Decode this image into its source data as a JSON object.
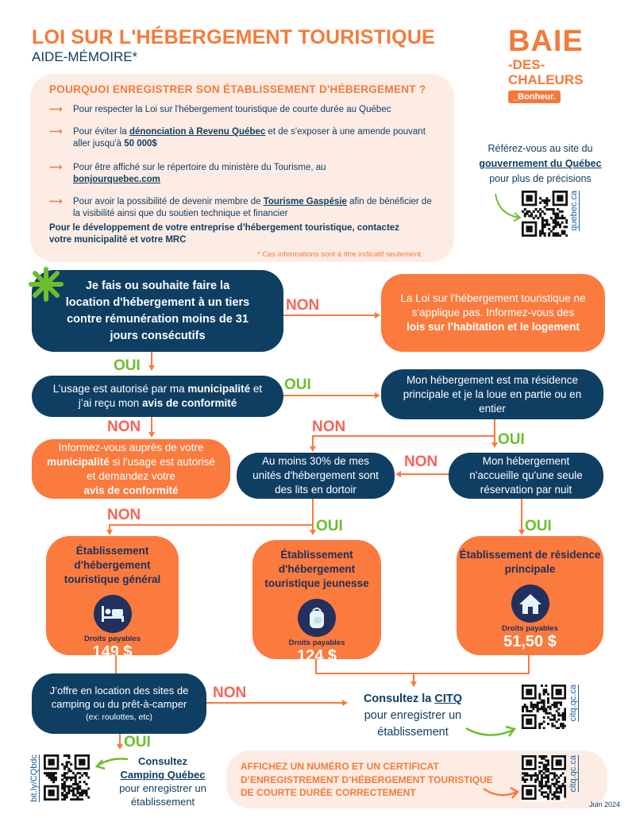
{
  "header": {
    "title": "LOI SUR L'HÉBERGEMENT TOURISTIQUE",
    "subtitle": "AIDE-MÉMOIRE*"
  },
  "logo": {
    "line1": "BAIE",
    "line2": "-DES-",
    "line3": "CHALEURS",
    "tag": "_Bonheur."
  },
  "why": {
    "title": "POURQUOI ENREGISTRER SON ÉTABLISSEMENT D'HÉBERGEMENT ?",
    "items": [
      {
        "text": "Pour respecter la Loi sur l'hébergement touristique de courte durée au Québec"
      },
      {
        "pre": "Pour éviter la ",
        "link": "dénonciation à Revenu Québec",
        "post": " et de s'exposer à une amende pouvant aller jusqu'à ",
        "bold": "50 000$"
      },
      {
        "pre": "Pour être affiché sur le répertoire du ministère du Tourisme, au ",
        "link": "bonjourquebec.com"
      },
      {
        "pre": "Pour avoir la possibilité de devenir membre de ",
        "link": "Tourisme Gaspésie",
        "post": " afin de bénéficier de la visibilité ainsi que du soutien technique et financier"
      }
    ],
    "development": "Pour le développement de votre entreprise d’hébergement touristique, contactez votre municipalité et votre MRC",
    "note": "* Ces informations sont à titre indicatif seulement"
  },
  "gov": {
    "pre": "Référez-vous au site du",
    "link": "gouvernement du Québec",
    "post": "pour plus de précisions",
    "qr_label": "quebec.ca"
  },
  "flow": {
    "q1": "Je fais ou souhaite faire la location d'hébergement à un tiers contre rémunération moins de 31 jours consécutifs",
    "na": {
      "text": "La Loi sur l'hébergement touristique ne s'applique pas. Informez-vous des",
      "bold": "lois sur l'habitation et le logement"
    },
    "q2": {
      "pre": "L’usage est autorisé par ma ",
      "b1": "municipalité",
      "mid": " et j’ai reçu mon ",
      "b2": "avis de conformité"
    },
    "q3": "Mon hébergement est ma résidence principale et je la loue en partie ou en entier",
    "info": {
      "pre": "Informez-vous auprès de votre ",
      "b1": "municipalité",
      "mid": " si l'usage est autorisé et demandez votre",
      "b2": "avis de conformité"
    },
    "q4": "Au moins 30% de mes unités d'hébergement sont des lits en dortoir",
    "q5": "Mon hébergement n'accueille qu'une seule réservation par nuit",
    "q6": {
      "text": "J’offre en location des sites de camping ou du prêt-à-camper",
      "small": "(ex: roulottes, etc)"
    },
    "yes": "OUI",
    "no": "NON"
  },
  "categories": [
    {
      "title": "Établissement d'hébergement touristique général",
      "icon": "bed-icon",
      "fee_label": "Droits payables",
      "fee": "149 $"
    },
    {
      "title": "Établissement d'hébergement touristique jeunesse",
      "icon": "backpack-icon",
      "fee_label": "Droits payables",
      "fee": "124 $"
    },
    {
      "title": "Établissement de résidence principale",
      "icon": "house-icon",
      "fee_label": "Droits payables",
      "fee": "51,50 $"
    }
  ],
  "citq": {
    "pre": "Consultez la ",
    "link": "CITQ",
    "post": "pour enregistrer un établissement",
    "qr_label": "citq.qc.ca"
  },
  "camping": {
    "pre": "Consultez",
    "link": "Camping Québec",
    "post": "pour enregistrer un établissement",
    "qr_label": "bit.ly/CQbdc"
  },
  "display": {
    "text": "AFFICHEZ UN NUMÉRO ET UN CERTIFICAT D’ENREGISTREMENT D’HÉBERGEMENT TOURISTIQUE DE COURTE DURÉE CORRECTEMENT",
    "qr_label": "citq.qc.ca"
  },
  "footer": {
    "date": "Juin 2024"
  },
  "colors": {
    "orange": "#fb7a3e",
    "navy": "#0f3e63",
    "peach": "#fdece4",
    "green": "#6cbf2b",
    "non": "#f2665a"
  }
}
